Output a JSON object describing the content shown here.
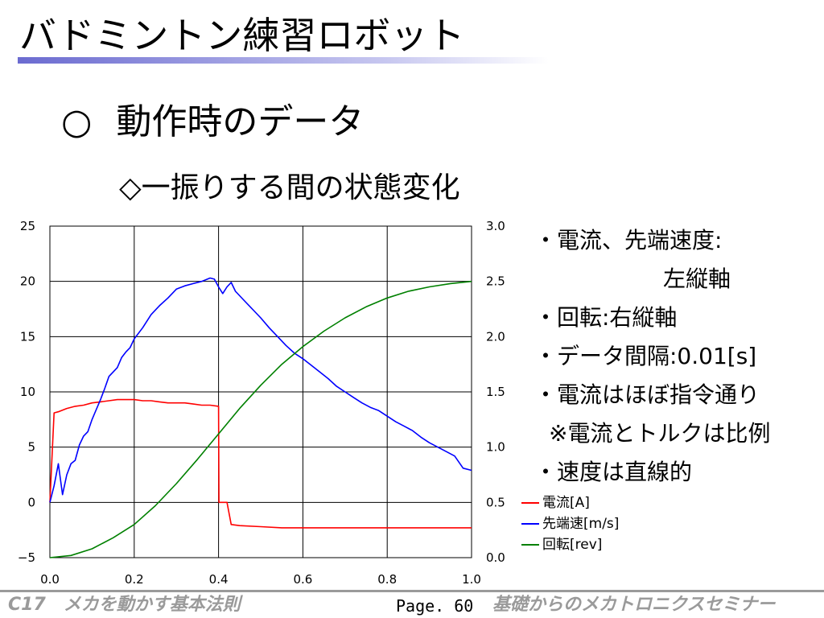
{
  "slide": {
    "title": "バドミントン練習ロボット",
    "heading_marker": "○",
    "heading": "動作時のデータ",
    "subheading": "◇一振りする間の状態変化"
  },
  "notes": [
    "・電流、先端速度:",
    "左縦軸",
    "・回転:右縦軸",
    "・データ間隔:0.01[s]",
    "・電流はほぼ指令通り",
    "※電流とトルクは比例",
    "・速度は直線的"
  ],
  "footer": {
    "left": "C17　メカを動かす基本法則",
    "page": "Page. 60",
    "right": "基礎からのメカトロニクスセミナー"
  },
  "colors": {
    "current": "#ff0000",
    "speed": "#0000ff",
    "rotation": "#008000",
    "footer_gray": "#9a9a9a"
  },
  "chart_data": {
    "type": "line",
    "xlim": [
      0,
      1.0
    ],
    "ylim_left": [
      -5,
      25
    ],
    "ylim_right": [
      0,
      3.0
    ],
    "x_ticks": [
      "0.0",
      "0.2",
      "0.4",
      "0.6",
      "0.8",
      "1.0"
    ],
    "y_left_ticks": [
      "−5",
      "0",
      "5",
      "10",
      "15",
      "20",
      "25"
    ],
    "y_right_ticks": [
      "0.0",
      "0.5",
      "1.0",
      "1.5",
      "2.0",
      "2.5",
      "3.0"
    ],
    "grid": true,
    "legend_position": "bottom-right",
    "series": [
      {
        "name": "電流[A]",
        "axis": "left",
        "color": "#ff0000",
        "points": [
          [
            0.0,
            0
          ],
          [
            0.01,
            8.1
          ],
          [
            0.02,
            8.2
          ],
          [
            0.04,
            8.5
          ],
          [
            0.06,
            8.7
          ],
          [
            0.08,
            8.8
          ],
          [
            0.1,
            9.0
          ],
          [
            0.12,
            9.1
          ],
          [
            0.14,
            9.2
          ],
          [
            0.16,
            9.3
          ],
          [
            0.18,
            9.3
          ],
          [
            0.2,
            9.3
          ],
          [
            0.22,
            9.2
          ],
          [
            0.24,
            9.2
          ],
          [
            0.26,
            9.1
          ],
          [
            0.28,
            9.0
          ],
          [
            0.3,
            9.0
          ],
          [
            0.32,
            9.0
          ],
          [
            0.34,
            8.9
          ],
          [
            0.36,
            8.8
          ],
          [
            0.38,
            8.8
          ],
          [
            0.4,
            8.7
          ],
          [
            0.401,
            0
          ],
          [
            0.42,
            0
          ],
          [
            0.43,
            -2.0
          ],
          [
            0.45,
            -2.1
          ],
          [
            0.5,
            -2.2
          ],
          [
            0.55,
            -2.3
          ],
          [
            0.6,
            -2.3
          ],
          [
            0.65,
            -2.3
          ],
          [
            0.7,
            -2.3
          ],
          [
            0.75,
            -2.3
          ],
          [
            0.8,
            -2.3
          ],
          [
            0.85,
            -2.3
          ],
          [
            0.9,
            -2.3
          ],
          [
            0.95,
            -2.3
          ],
          [
            1.0,
            -2.3
          ]
        ]
      },
      {
        "name": "先端速[m/s]",
        "axis": "left",
        "color": "#0000ff",
        "points": [
          [
            0.0,
            0
          ],
          [
            0.01,
            1.5
          ],
          [
            0.02,
            3.5
          ],
          [
            0.03,
            0.7
          ],
          [
            0.04,
            2.5
          ],
          [
            0.05,
            3.5
          ],
          [
            0.06,
            3.8
          ],
          [
            0.07,
            5.2
          ],
          [
            0.08,
            6.0
          ],
          [
            0.09,
            6.4
          ],
          [
            0.1,
            7.5
          ],
          [
            0.11,
            8.4
          ],
          [
            0.12,
            9.3
          ],
          [
            0.13,
            10.3
          ],
          [
            0.14,
            11.4
          ],
          [
            0.15,
            11.8
          ],
          [
            0.16,
            12.2
          ],
          [
            0.17,
            13.1
          ],
          [
            0.18,
            13.6
          ],
          [
            0.19,
            14.0
          ],
          [
            0.2,
            14.8
          ],
          [
            0.22,
            15.8
          ],
          [
            0.24,
            17.0
          ],
          [
            0.26,
            17.8
          ],
          [
            0.28,
            18.5
          ],
          [
            0.3,
            19.3
          ],
          [
            0.32,
            19.6
          ],
          [
            0.34,
            19.8
          ],
          [
            0.36,
            20.0
          ],
          [
            0.38,
            20.3
          ],
          [
            0.39,
            20.2
          ],
          [
            0.4,
            19.5
          ],
          [
            0.41,
            18.9
          ],
          [
            0.42,
            19.5
          ],
          [
            0.43,
            19.9
          ],
          [
            0.44,
            19.1
          ],
          [
            0.46,
            18.3
          ],
          [
            0.48,
            17.5
          ],
          [
            0.5,
            16.7
          ],
          [
            0.52,
            15.8
          ],
          [
            0.54,
            15.0
          ],
          [
            0.56,
            14.2
          ],
          [
            0.58,
            13.5
          ],
          [
            0.6,
            13.0
          ],
          [
            0.62,
            12.4
          ],
          [
            0.64,
            11.8
          ],
          [
            0.66,
            11.2
          ],
          [
            0.68,
            10.5
          ],
          [
            0.7,
            10.0
          ],
          [
            0.72,
            9.5
          ],
          [
            0.74,
            9.0
          ],
          [
            0.76,
            8.6
          ],
          [
            0.78,
            8.3
          ],
          [
            0.8,
            7.8
          ],
          [
            0.82,
            7.3
          ],
          [
            0.84,
            6.9
          ],
          [
            0.86,
            6.5
          ],
          [
            0.88,
            5.9
          ],
          [
            0.9,
            5.4
          ],
          [
            0.92,
            5.0
          ],
          [
            0.94,
            4.6
          ],
          [
            0.96,
            4.2
          ],
          [
            0.98,
            3.1
          ],
          [
            1.0,
            2.9
          ]
        ]
      },
      {
        "name": "回転[rev]",
        "axis": "right",
        "color": "#008000",
        "points": [
          [
            0.0,
            0.0
          ],
          [
            0.05,
            0.02
          ],
          [
            0.1,
            0.08
          ],
          [
            0.15,
            0.18
          ],
          [
            0.2,
            0.3
          ],
          [
            0.25,
            0.47
          ],
          [
            0.3,
            0.67
          ],
          [
            0.35,
            0.89
          ],
          [
            0.4,
            1.12
          ],
          [
            0.45,
            1.35
          ],
          [
            0.5,
            1.56
          ],
          [
            0.55,
            1.75
          ],
          [
            0.6,
            1.91
          ],
          [
            0.65,
            2.05
          ],
          [
            0.7,
            2.17
          ],
          [
            0.75,
            2.27
          ],
          [
            0.8,
            2.35
          ],
          [
            0.85,
            2.41
          ],
          [
            0.9,
            2.45
          ],
          [
            0.95,
            2.48
          ],
          [
            1.0,
            2.5
          ]
        ]
      }
    ]
  }
}
